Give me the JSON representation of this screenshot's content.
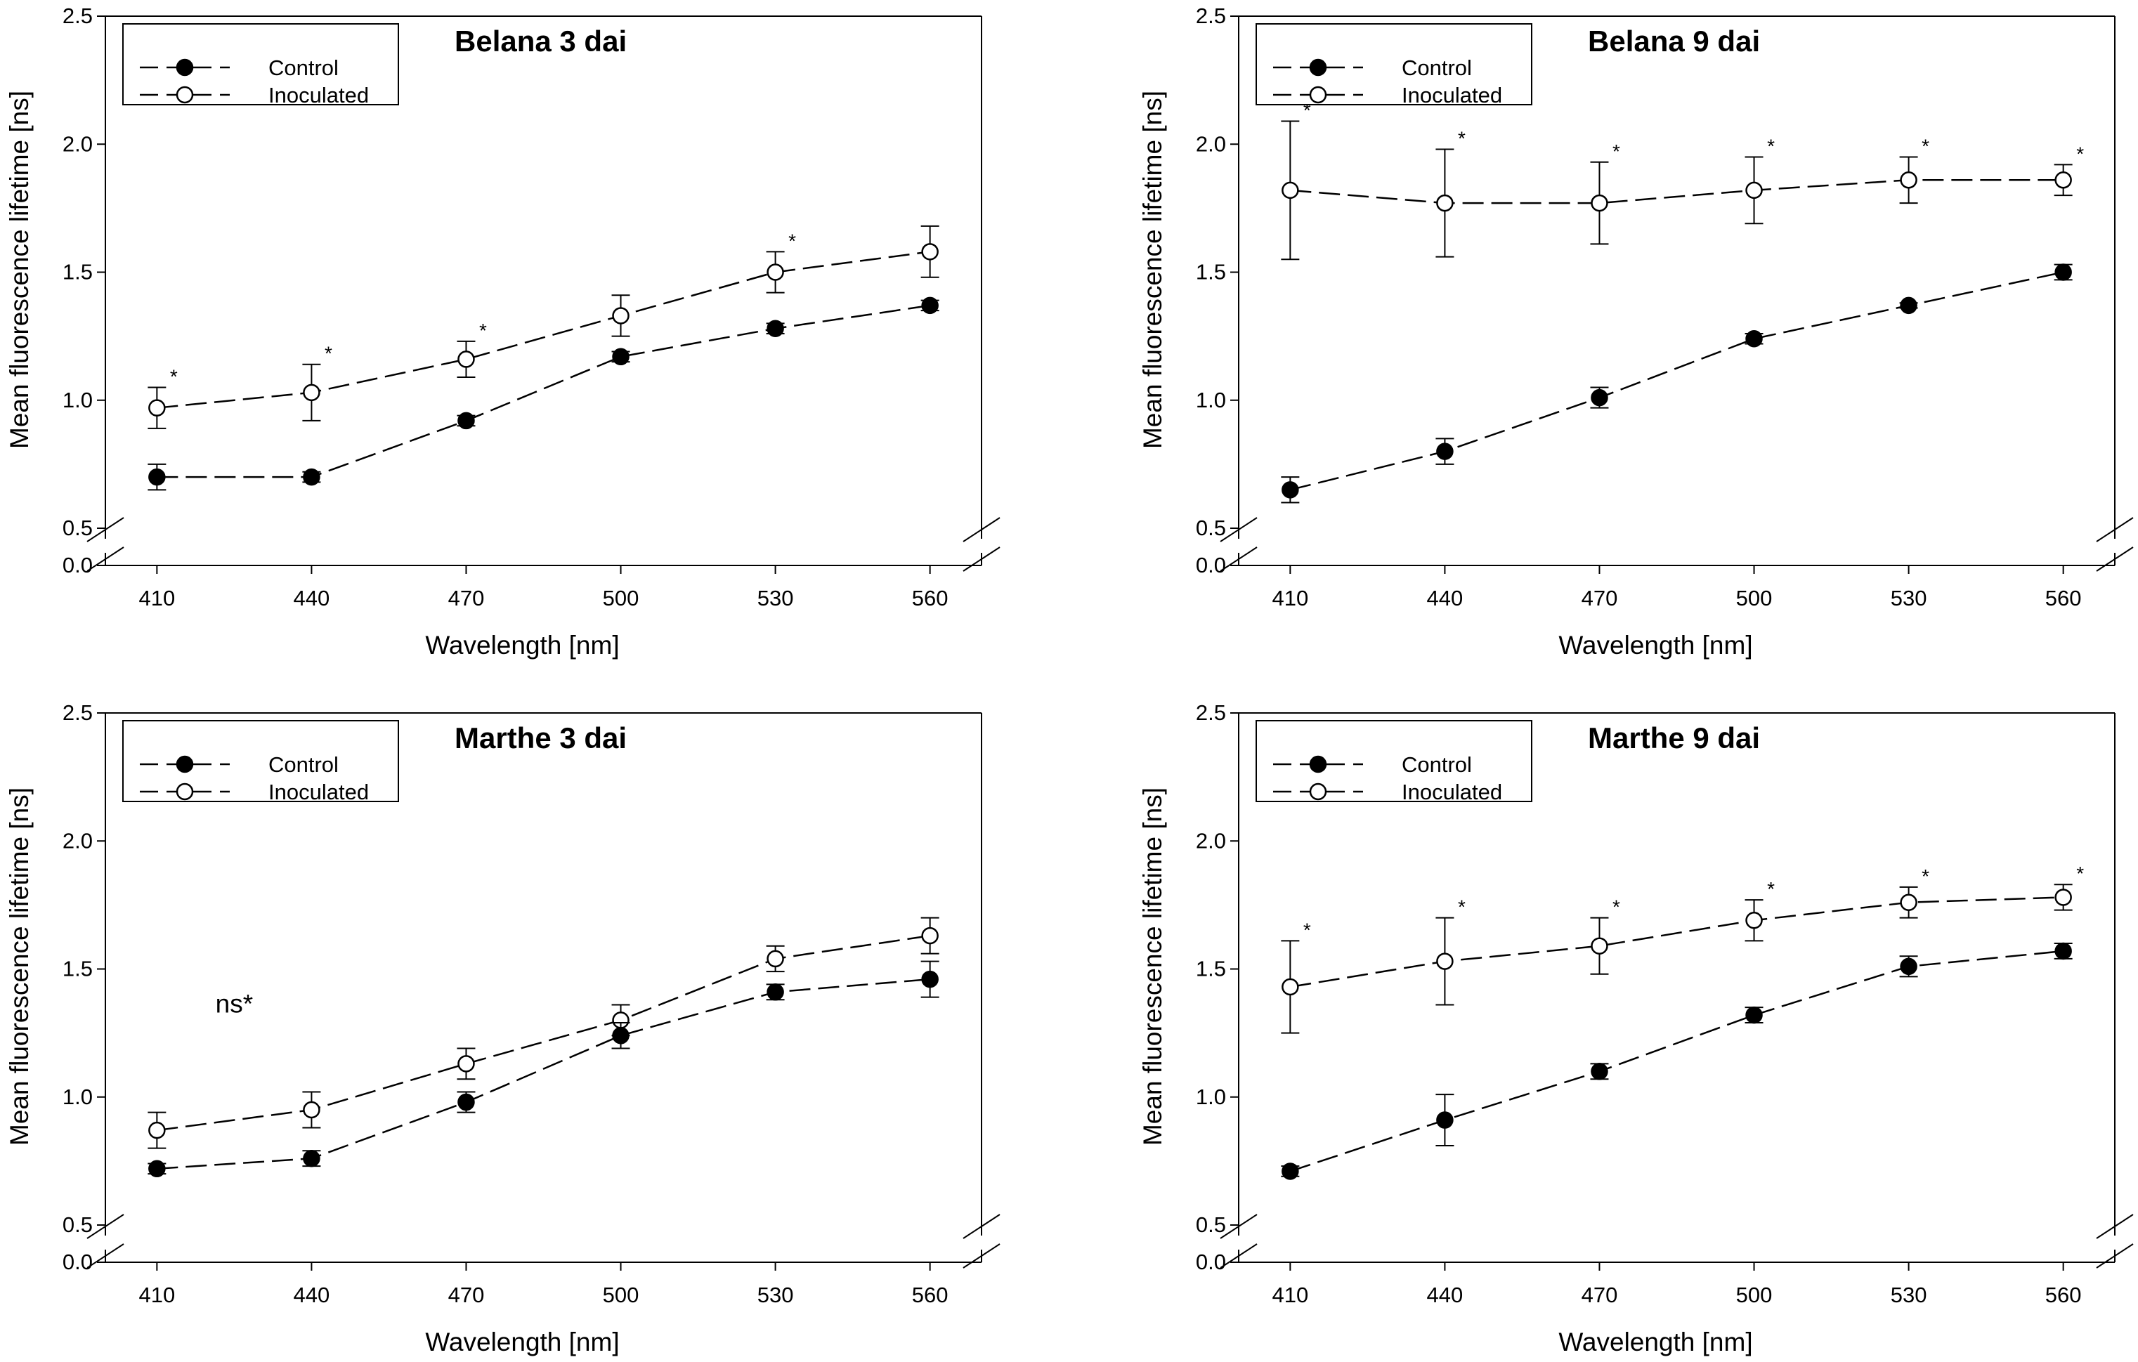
{
  "figure": {
    "legend_labels": {
      "control": "Control",
      "inoculated": "Inoculated"
    },
    "colors": {
      "control": "#000000",
      "inoculated": "#ffffff",
      "stroke": "#000000"
    }
  },
  "chart_data": [
    {
      "type": "line",
      "title": "Belana 3 dai",
      "xlabel": "Wavelength [nm]",
      "ylabel": "Mean fluorescence lifetime [ns]",
      "x": [
        410,
        440,
        470,
        500,
        530,
        560
      ],
      "xlim": [
        400,
        570
      ],
      "ylim": [
        0.0,
        2.5
      ],
      "axis_break": [
        0.0,
        0.5
      ],
      "yticks": [
        "0.0",
        "0.5",
        "1.0",
        "1.5",
        "2.0",
        "2.5"
      ],
      "legend": "top-left",
      "series": [
        {
          "name": "Control",
          "marker": "filled-circle",
          "values": [
            0.7,
            0.7,
            0.92,
            1.17,
            1.28,
            1.37
          ],
          "errors": [
            0.05,
            0.02,
            0.02,
            0.02,
            0.02,
            0.02
          ]
        },
        {
          "name": "Inoculated",
          "marker": "open-circle",
          "values": [
            0.97,
            1.03,
            1.16,
            1.33,
            1.5,
            1.58
          ],
          "errors": [
            0.08,
            0.11,
            0.07,
            0.08,
            0.08,
            0.1
          ]
        }
      ],
      "annotations": [
        {
          "text": "*",
          "x": 410
        },
        {
          "text": "*",
          "x": 440
        },
        {
          "text": "*",
          "x": 470
        },
        {
          "text": "*",
          "x": 530
        }
      ]
    },
    {
      "type": "line",
      "title": "Belana 9 dai",
      "xlabel": "Wavelength [nm]",
      "ylabel": "Mean fluorescence lifetime [ns]",
      "x": [
        410,
        440,
        470,
        500,
        530,
        560
      ],
      "xlim": [
        400,
        570
      ],
      "ylim": [
        0.0,
        2.5
      ],
      "axis_break": [
        0.0,
        0.5
      ],
      "yticks": [
        "0.0",
        "0.5",
        "1.0",
        "1.5",
        "2.0",
        "2.5"
      ],
      "legend": "top-left",
      "series": [
        {
          "name": "Control",
          "marker": "filled-circle",
          "values": [
            0.65,
            0.8,
            1.01,
            1.24,
            1.37,
            1.5
          ],
          "errors": [
            0.05,
            0.05,
            0.04,
            0.02,
            0.01,
            0.03
          ]
        },
        {
          "name": "Inoculated",
          "marker": "open-circle",
          "values": [
            1.82,
            1.77,
            1.77,
            1.82,
            1.86,
            1.86
          ],
          "errors": [
            0.27,
            0.21,
            0.16,
            0.13,
            0.09,
            0.06
          ]
        }
      ],
      "annotations": [
        {
          "text": "*",
          "x": 410
        },
        {
          "text": "*",
          "x": 440
        },
        {
          "text": "*",
          "x": 470
        },
        {
          "text": "*",
          "x": 500
        },
        {
          "text": "*",
          "x": 530
        },
        {
          "text": "*",
          "x": 560
        }
      ]
    },
    {
      "type": "line",
      "title": "Marthe 3 dai",
      "xlabel": "Wavelength [nm]",
      "ylabel": "Mean fluorescence lifetime [ns]",
      "x": [
        410,
        440,
        470,
        500,
        530,
        560
      ],
      "xlim": [
        400,
        570
      ],
      "ylim": [
        0.0,
        2.5
      ],
      "axis_break": [
        0.0,
        0.5
      ],
      "yticks": [
        "0.0",
        "0.5",
        "1.0",
        "1.5",
        "2.0",
        "2.5"
      ],
      "legend": "top-left",
      "series": [
        {
          "name": "Control",
          "marker": "filled-circle",
          "values": [
            0.72,
            0.76,
            0.98,
            1.24,
            1.41,
            1.46
          ],
          "errors": [
            0.02,
            0.03,
            0.04,
            0.05,
            0.03,
            0.07
          ]
        },
        {
          "name": "Inoculated",
          "marker": "open-circle",
          "values": [
            0.87,
            0.95,
            1.13,
            1.3,
            1.54,
            1.63
          ],
          "errors": [
            0.07,
            0.07,
            0.06,
            0.06,
            0.05,
            0.07
          ]
        }
      ],
      "annotations": [
        {
          "text": "ns*",
          "x": 425,
          "y": 1.33
        }
      ]
    },
    {
      "type": "line",
      "title": "Marthe 9 dai",
      "xlabel": "Wavelength [nm]",
      "ylabel": "Mean fluorescence lifetime [ns]",
      "x": [
        410,
        440,
        470,
        500,
        530,
        560
      ],
      "xlim": [
        400,
        570
      ],
      "ylim": [
        0.0,
        2.5
      ],
      "axis_break": [
        0.0,
        0.5
      ],
      "yticks": [
        "0.0",
        "0.5",
        "1.0",
        "1.5",
        "2.0",
        "2.5"
      ],
      "legend": "top-left",
      "series": [
        {
          "name": "Control",
          "marker": "filled-circle",
          "values": [
            0.71,
            0.91,
            1.1,
            1.32,
            1.51,
            1.57
          ],
          "errors": [
            0.02,
            0.1,
            0.03,
            0.03,
            0.04,
            0.03
          ]
        },
        {
          "name": "Inoculated",
          "marker": "open-circle",
          "values": [
            1.43,
            1.53,
            1.59,
            1.69,
            1.76,
            1.78
          ],
          "errors": [
            0.18,
            0.17,
            0.11,
            0.08,
            0.06,
            0.05
          ]
        }
      ],
      "annotations": [
        {
          "text": "*",
          "x": 410
        },
        {
          "text": "*",
          "x": 440
        },
        {
          "text": "*",
          "x": 470
        },
        {
          "text": "*",
          "x": 500
        },
        {
          "text": "*",
          "x": 530
        },
        {
          "text": "*",
          "x": 560
        }
      ]
    }
  ]
}
